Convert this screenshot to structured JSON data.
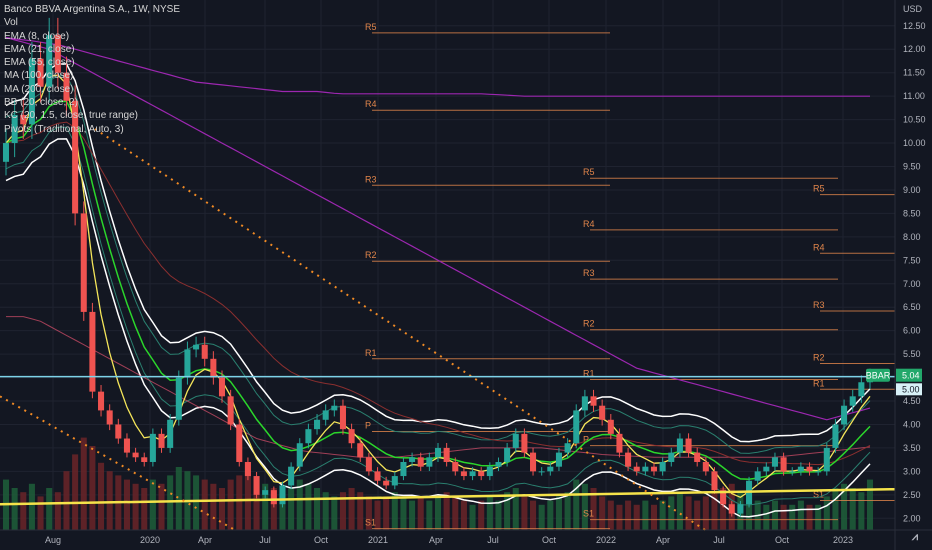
{
  "chart_data": {
    "type": "candlestick",
    "title": "Banco BBVA Argentina S.A., 1W, NYSE",
    "symbol": "BBAR",
    "currency": "USD",
    "legend": [
      "Vol",
      "EMA (8, close)",
      "EMA (21, close)",
      "EMA (55, close)",
      "MA (100, close)",
      "MA (200, close)",
      "BB (20, close, 2)",
      "KC (20, 1.5, close, true range)",
      "Pivots (Traditional, Auto, 3)"
    ],
    "ylim": [
      1.75,
      13.05
    ],
    "y_ticks": [
      "2.00",
      "2.50",
      "3.00",
      "3.50",
      "4.00",
      "4.50",
      "5.00",
      "5.50",
      "6.00",
      "6.50",
      "7.00",
      "7.50",
      "8.00",
      "8.50",
      "9.00",
      "9.50",
      "10.00",
      "10.50",
      "11.00",
      "11.50",
      "12.00",
      "12.50",
      "USD"
    ],
    "x_ticks": [
      "Aug",
      "2020",
      "Apr",
      "Jul",
      "Oct",
      "2021",
      "Apr",
      "Jul",
      "Oct",
      "2022",
      "Apr",
      "Jul",
      "Oct",
      "2023"
    ],
    "last_price": "5.04",
    "last_price_secondary": "5.00",
    "horizontal_line": 5.02,
    "pivots": [
      {
        "levels": [
          [
            "R5",
            12.35
          ],
          [
            "R4",
            10.7
          ],
          [
            "R3",
            9.1
          ],
          [
            "R2",
            7.48
          ],
          [
            "R1",
            5.4
          ],
          [
            "P",
            3.85
          ],
          [
            "S1",
            1.78
          ]
        ]
      },
      {
        "levels": [
          [
            "R5",
            9.25
          ],
          [
            "R4",
            8.15
          ],
          [
            "R3",
            7.1
          ],
          [
            "R2",
            6.02
          ],
          [
            "R1",
            4.96
          ],
          [
            "P",
            3.55
          ],
          [
            "S1",
            1.97
          ]
        ]
      },
      {
        "levels": [
          [
            "R5",
            8.9
          ],
          [
            "R4",
            7.65
          ],
          [
            "R3",
            6.42
          ],
          [
            "R2",
            5.3
          ],
          [
            "R1",
            4.75
          ],
          [
            "S1",
            2.38
          ]
        ]
      }
    ],
    "series": [
      {
        "values": [
          10.0,
          10.6,
          10.4,
          11.8,
          11.2,
          12.3,
          11.5,
          10.9,
          8.5,
          6.4,
          4.7,
          4.3,
          4.0,
          3.7,
          3.4,
          3.3,
          3.2,
          3.8,
          3.5,
          4.1,
          5.0,
          5.6,
          5.7,
          5.4,
          5.0,
          4.6,
          4.0,
          3.2,
          2.9,
          2.5,
          2.6,
          2.3,
          2.7,
          3.1,
          3.6,
          3.9,
          4.1,
          4.3,
          4.4,
          3.9,
          3.6,
          3.3,
          3.0,
          2.8,
          2.7,
          2.9,
          3.2,
          3.3,
          3.1,
          3.3,
          3.5,
          3.2,
          3.0,
          2.9,
          3.0,
          2.9,
          3.1,
          3.2,
          3.5,
          3.8,
          3.4,
          3.0,
          3.0,
          3.1,
          3.4,
          3.6,
          4.3,
          4.6,
          4.4,
          4.1,
          3.8,
          3.4,
          3.1,
          3.0,
          3.1,
          3.0,
          3.2,
          3.4,
          3.7,
          3.4,
          3.2,
          3.0,
          2.6,
          2.3,
          2.1,
          2.3,
          2.8,
          3.0,
          3.1,
          3.3,
          3.0,
          3.0,
          3.1,
          3.0,
          3.0,
          3.5,
          4.0,
          4.4,
          4.6,
          4.9,
          5.04
        ]
      },
      {
        "values": [
          6.3,
          6.3,
          6.3,
          6.25,
          6.2,
          6.1,
          6.0,
          5.9,
          5.8,
          5.7,
          5.6,
          5.5,
          5.4,
          5.3,
          5.2,
          5.1,
          5.0,
          4.9,
          4.8,
          4.7,
          4.6,
          4.5,
          4.4,
          4.3,
          4.2,
          4.1,
          4.0,
          3.9,
          3.8,
          3.7,
          3.65,
          3.6,
          3.55,
          3.5,
          3.45,
          3.42,
          3.4,
          3.38,
          3.36,
          3.34,
          3.32,
          3.3,
          3.3,
          3.3,
          3.3,
          3.3,
          3.32,
          3.34,
          3.36,
          3.38,
          3.4,
          3.42,
          3.44,
          3.46,
          3.48,
          3.5,
          3.5,
          3.5,
          3.5,
          3.5,
          3.5,
          3.5,
          3.5,
          3.48,
          3.46,
          3.44,
          3.42,
          3.4,
          3.38,
          3.36,
          3.35,
          3.34,
          3.33,
          3.32,
          3.31,
          3.3,
          3.3,
          3.3,
          3.3,
          3.3,
          3.3,
          3.3,
          3.3,
          3.3,
          3.3,
          3.3,
          3.3,
          3.3,
          3.3,
          3.3,
          3.32,
          3.34,
          3.36,
          3.38,
          3.4,
          3.42,
          3.44,
          3.46,
          3.48,
          3.5,
          3.52
        ]
      },
      {
        "values": [
          12.25,
          12.2,
          12.15,
          12.1,
          12.05,
          12.0,
          11.9,
          11.8,
          11.7,
          11.6,
          11.5,
          11.4,
          11.3,
          11.2,
          11.1,
          11.0,
          10.9,
          10.8,
          10.7,
          10.6,
          10.5,
          10.4,
          10.3,
          10.2,
          10.1,
          10.0,
          9.9,
          9.8,
          9.7,
          9.6,
          9.5,
          9.4,
          9.3,
          9.2,
          9.1,
          9.0,
          8.9,
          8.8,
          8.7,
          8.6,
          8.5,
          8.4,
          8.3,
          8.2,
          8.1,
          8.0,
          7.9,
          7.8,
          7.7,
          7.6,
          7.5,
          7.4,
          7.3,
          7.2,
          7.1,
          7.0,
          6.9,
          6.8,
          6.7,
          6.6,
          6.5,
          6.4,
          6.3,
          6.2,
          6.1,
          6.0,
          5.9,
          5.8,
          5.7,
          5.6,
          5.5,
          5.4,
          5.3,
          5.2,
          5.15,
          5.1,
          5.05,
          5.0,
          4.95,
          4.9,
          4.85,
          4.8,
          4.75,
          4.7,
          4.65,
          4.6,
          4.55,
          4.5,
          4.45,
          4.4,
          4.35,
          4.3,
          4.25,
          4.2,
          4.15,
          4.1,
          4.15,
          4.2,
          4.25,
          4.3,
          4.35
        ]
      },
      {
        "values": [
          12.25,
          12.22,
          12.2,
          12.18,
          12.15,
          12.12,
          12.1,
          12.05,
          12.0,
          11.95,
          11.9,
          11.85,
          11.8,
          11.75,
          11.7,
          11.65,
          11.6,
          11.55,
          11.5,
          11.45,
          11.4,
          11.35,
          11.3,
          11.28,
          11.26,
          11.24,
          11.22,
          11.2,
          11.18,
          11.16,
          11.14,
          11.12,
          11.1,
          11.1,
          11.1,
          11.1,
          11.1,
          11.08,
          11.06,
          11.05,
          11.05,
          11.05,
          11.05,
          11.05,
          11.05,
          11.05,
          11.05,
          11.05,
          11.05,
          11.05,
          11.05,
          11.05,
          11.05,
          11.05,
          11.05,
          11.05,
          11.04,
          11.03,
          11.02,
          11.01,
          11.0,
          11.0,
          11.0,
          11.0,
          11.0,
          11.0,
          11.0,
          11.0,
          11.0,
          11.0,
          11.0,
          11.0,
          11.0,
          11.0,
          11.0,
          11.0,
          11.0,
          11.0,
          11.0,
          11.0,
          11.0,
          11.0,
          11.0,
          11.0,
          11.0,
          11.0,
          11.0,
          11.0,
          11.0,
          11.0,
          11.0,
          11.0,
          11.0,
          11.0,
          11.0,
          11.0,
          11.0,
          11.0,
          11.0,
          11.0,
          11.0
        ]
      }
    ],
    "volume": [
      12,
      10,
      9,
      11,
      8,
      10,
      9,
      14,
      18,
      22,
      20,
      16,
      14,
      13,
      12,
      11,
      10,
      12,
      11,
      13,
      15,
      14,
      13,
      12,
      11,
      10,
      12,
      13,
      14,
      12,
      11,
      10,
      9,
      10,
      12,
      11,
      10,
      9,
      8,
      9,
      10,
      9,
      8,
      7,
      8,
      9,
      8,
      7,
      8,
      7,
      8,
      9,
      8,
      7,
      6,
      7,
      8,
      7,
      9,
      10,
      8,
      7,
      6,
      7,
      8,
      9,
      12,
      11,
      10,
      8,
      7,
      6,
      7,
      6,
      7,
      6,
      7,
      8,
      9,
      8,
      7,
      8,
      9,
      10,
      11,
      9,
      8,
      7,
      6,
      7,
      6,
      6,
      7,
      6,
      6,
      8,
      10,
      11,
      10,
      9,
      12
    ],
    "colors": {
      "up": "#26a69a",
      "down": "#ef5350",
      "ema8": "#f5e65a",
      "ema21": "#2bd62b",
      "ema55": "#8b2f2f",
      "ma100": "#ff5a7a",
      "ma200": "#9c27b0",
      "bb": "#ffffff",
      "kc": "#2a7f6f",
      "pivot": "#e0854b",
      "support": "#f5e34a",
      "price_line": "#7dd3e8",
      "badge": "#22a86b"
    }
  }
}
